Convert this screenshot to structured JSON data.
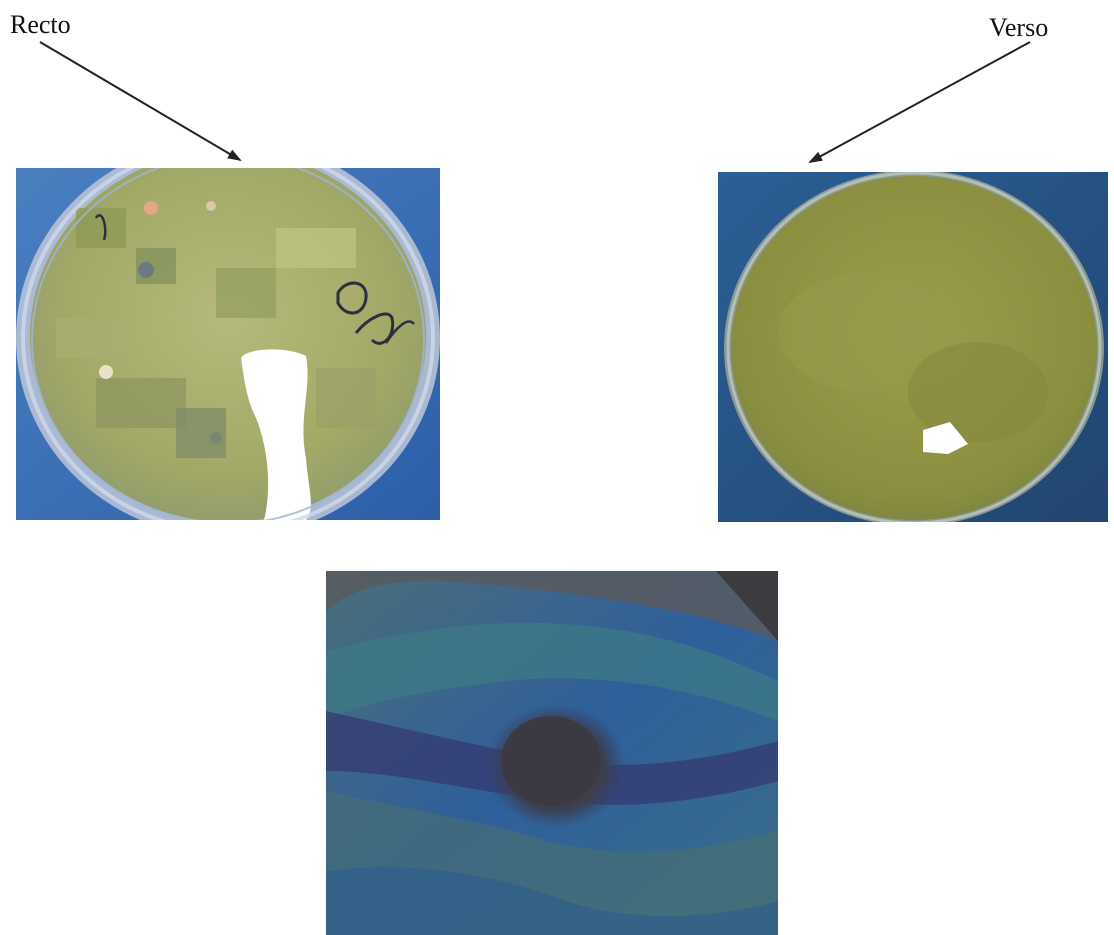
{
  "labels": {
    "recto": "Recto",
    "verso": "Verso"
  },
  "colors": {
    "agar_green": "#a7ad6a",
    "verso_green": "#8f9443",
    "background_blue": "#2f6aa6",
    "micro_blue": "#2f5f9a",
    "micro_dark": "#3f3f46"
  }
}
